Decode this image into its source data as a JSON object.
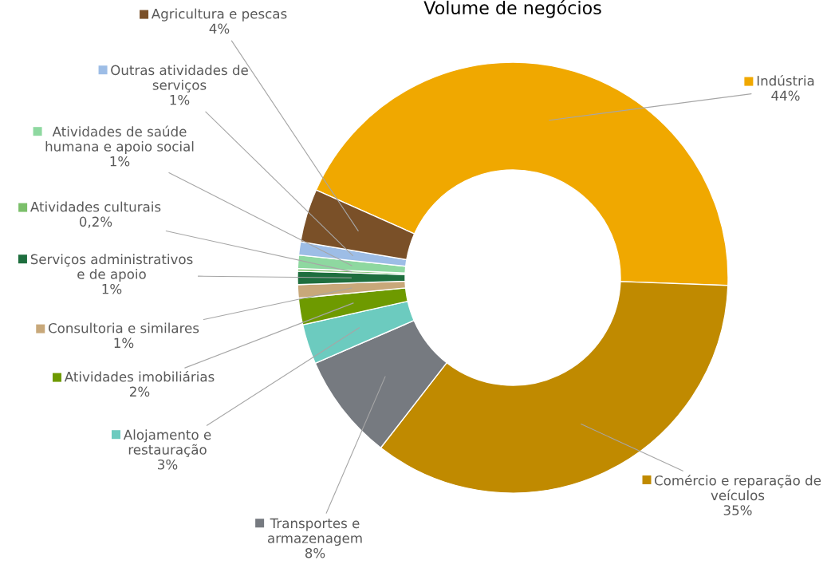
{
  "chart_data": {
    "type": "donut",
    "title": "Volume de negócios",
    "categories": [
      "Indústria",
      "Comércio e reparação de\nveículos",
      "Transportes e\narmazenagem",
      "Alojamento e\nrestauração",
      "Atividades imobiliárias",
      "Consultoria e similares",
      "Serviços administrativos\ne de apoio",
      "Atividades culturais",
      "Atividades de saúde\nhumana e apoio social",
      "Outras atividades de\nserviços",
      "Agricultura e pescas"
    ],
    "values": [
      44,
      35,
      8,
      3,
      2,
      1,
      1,
      0.2,
      1,
      1,
      4
    ],
    "value_labels": [
      "44%",
      "35%",
      "8%",
      "3%",
      "2%",
      "1%",
      "1%",
      "0,2%",
      "1%",
      "1%",
      "4%"
    ],
    "colors": [
      "#f0a800",
      "#c08a00",
      "#767a80",
      "#6ccbbf",
      "#6e9a00",
      "#c8a87a",
      "#1e6e3e",
      "#7bbf6a",
      "#8ed8a0",
      "#9dbde6",
      "#7a5028"
    ],
    "legend": "left"
  }
}
